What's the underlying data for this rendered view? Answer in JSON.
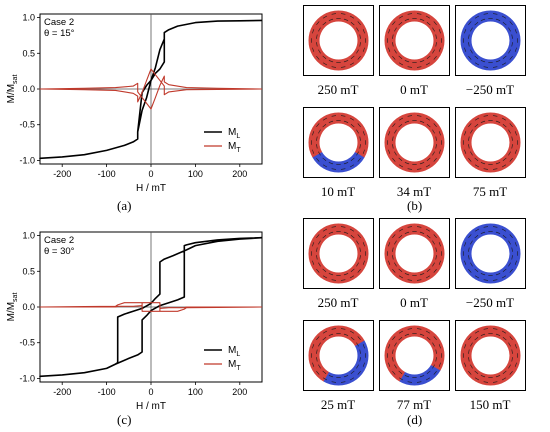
{
  "chart_data": [
    {
      "type": "line",
      "panel": "(a)",
      "annotation": [
        "Case 2",
        "θ = 15°"
      ],
      "xlabel": "H / mT",
      "ylabel": "M/Msat",
      "xlim": [
        -250,
        250
      ],
      "ylim": [
        -1.05,
        1.05
      ],
      "xticks": [
        -200,
        -100,
        0,
        100,
        200
      ],
      "yticks": [
        -1.0,
        -0.5,
        0.0,
        0.5,
        1.0
      ],
      "legend_position": "bottom-right",
      "series": [
        {
          "name": "ML",
          "color": "#000000",
          "x": [
            250,
            200,
            150,
            100,
            60,
            40,
            30,
            30,
            20,
            10,
            0,
            -10,
            -20,
            -30,
            -30,
            -40,
            -60,
            -100,
            -150,
            -200,
            -250,
            -250,
            -200,
            -150,
            -100,
            -60,
            -40,
            -30,
            -30,
            -20,
            -10,
            0,
            10,
            20,
            30,
            30,
            40,
            60,
            100,
            150,
            200,
            250
          ],
          "y": [
            0.96,
            0.955,
            0.95,
            0.93,
            0.88,
            0.83,
            0.79,
            0.38,
            0.28,
            0.22,
            0.12,
            0.05,
            -0.05,
            -0.6,
            -0.7,
            -0.74,
            -0.79,
            -0.86,
            -0.92,
            -0.95,
            -0.97,
            -0.97,
            -0.95,
            -0.92,
            -0.86,
            -0.79,
            -0.74,
            -0.7,
            -0.6,
            -0.3,
            -0.12,
            0.12,
            0.3,
            0.55,
            0.7,
            0.79,
            0.83,
            0.88,
            0.93,
            0.95,
            0.955,
            0.96
          ]
        },
        {
          "name": "MT",
          "color": "#c0392b",
          "x": [
            250,
            150,
            80,
            40,
            30,
            30,
            20,
            10,
            0,
            -10,
            -20,
            -30,
            -30,
            -40,
            -80,
            -150,
            -250,
            -250,
            -150,
            -80,
            -40,
            -30,
            -30,
            -20,
            -10,
            0,
            10,
            20,
            30,
            30,
            40,
            80,
            150,
            250
          ],
          "y": [
            0.0,
            -0.005,
            -0.01,
            -0.04,
            -0.08,
            0.04,
            0.12,
            0.2,
            0.28,
            0.12,
            -0.05,
            -0.18,
            -0.1,
            -0.06,
            -0.02,
            -0.01,
            0.0,
            0.0,
            0.01,
            0.02,
            0.04,
            0.08,
            -0.04,
            -0.12,
            -0.2,
            -0.28,
            -0.12,
            0.05,
            0.18,
            0.1,
            0.06,
            0.02,
            0.01,
            0.0
          ]
        }
      ]
    },
    {
      "type": "line",
      "panel": "(c)",
      "annotation": [
        "Case 2",
        "θ = 30°"
      ],
      "xlabel": "H / mT",
      "ylabel": "M/Msat",
      "xlim": [
        -250,
        250
      ],
      "ylim": [
        -1.05,
        1.05
      ],
      "xticks": [
        -200,
        -100,
        0,
        100,
        200
      ],
      "yticks": [
        -1.0,
        -0.5,
        0.0,
        0.5,
        1.0
      ],
      "legend_position": "bottom-right",
      "series": [
        {
          "name": "ML",
          "color": "#000000",
          "x": [
            250,
            200,
            150,
            100,
            80,
            75,
            75,
            60,
            40,
            20,
            0,
            -10,
            -20,
            -20,
            -30,
            -50,
            -80,
            -100,
            -150,
            -200,
            -250,
            -250,
            -200,
            -150,
            -100,
            -80,
            -75,
            -75,
            -60,
            -40,
            -20,
            0,
            10,
            20,
            20,
            30,
            50,
            80,
            100,
            150,
            200,
            250
          ],
          "y": [
            0.97,
            0.96,
            0.94,
            0.9,
            0.87,
            0.86,
            0.14,
            0.1,
            0.06,
            0.02,
            -0.05,
            -0.12,
            -0.18,
            -0.63,
            -0.67,
            -0.72,
            -0.8,
            -0.86,
            -0.92,
            -0.95,
            -0.97,
            -0.97,
            -0.95,
            -0.92,
            -0.86,
            -0.8,
            -0.78,
            -0.14,
            -0.1,
            -0.06,
            -0.02,
            0.05,
            0.12,
            0.18,
            0.63,
            0.67,
            0.72,
            0.8,
            0.86,
            0.92,
            0.95,
            0.97
          ]
        },
        {
          "name": "MT",
          "color": "#c0392b",
          "x": [
            250,
            150,
            80,
            75,
            60,
            40,
            20,
            20,
            0,
            -20,
            -20,
            -40,
            -75,
            -80,
            -150,
            -250,
            -250,
            -150,
            -80,
            -75,
            -60,
            -40,
            -20,
            -20,
            0,
            20,
            20,
            40,
            75,
            80,
            150,
            250
          ],
          "y": [
            0.0,
            -0.005,
            -0.01,
            -0.03,
            -0.06,
            -0.06,
            -0.06,
            0.06,
            0.06,
            0.06,
            0.02,
            0.01,
            0.01,
            0.0,
            0.0,
            0.0,
            0.0,
            0.005,
            0.01,
            0.03,
            0.06,
            0.06,
            0.06,
            -0.06,
            -0.06,
            -0.06,
            -0.02,
            -0.01,
            -0.01,
            0.0,
            0.0,
            0.0
          ]
        }
      ]
    }
  ],
  "panels": {
    "a_label": "(a)",
    "b_label": "(b)",
    "c_label": "(c)",
    "d_label": "(d)"
  },
  "rings_b": [
    {
      "caption": "250 mT",
      "colors": [
        "red",
        "red",
        "red",
        "red",
        "red",
        "red",
        "red",
        "red",
        "red",
        "red",
        "red",
        "red"
      ]
    },
    {
      "caption": "0 mT",
      "colors": [
        "red",
        "red",
        "red",
        "red",
        "red",
        "red",
        "red",
        "red",
        "red",
        "red",
        "red",
        "red"
      ]
    },
    {
      "caption": "−250 mT",
      "colors": [
        "blue",
        "blue",
        "blue",
        "blue",
        "blue",
        "blue",
        "blue",
        "blue",
        "blue",
        "blue",
        "blue",
        "blue"
      ]
    },
    {
      "caption": "10 mT",
      "colors": [
        "red",
        "red",
        "red",
        "red",
        "blue",
        "blue",
        "blue",
        "blue",
        "red",
        "red",
        "red",
        "red"
      ]
    },
    {
      "caption": "34 mT",
      "colors": [
        "red",
        "red",
        "red",
        "red",
        "red",
        "red",
        "red",
        "red",
        "red",
        "red",
        "red",
        "red"
      ]
    },
    {
      "caption": "75 mT",
      "colors": [
        "red",
        "red",
        "red",
        "red",
        "red",
        "red",
        "red",
        "red",
        "red",
        "red",
        "red",
        "red"
      ]
    }
  ],
  "rings_d": [
    {
      "caption": "250 mT",
      "colors": [
        "red",
        "red",
        "red",
        "red",
        "red",
        "red",
        "red",
        "red",
        "red",
        "red",
        "red",
        "red"
      ]
    },
    {
      "caption": "0 mT",
      "colors": [
        "red",
        "red",
        "red",
        "red",
        "red",
        "red",
        "red",
        "red",
        "red",
        "red",
        "red",
        "red"
      ]
    },
    {
      "caption": "−250 mT",
      "colors": [
        "blue",
        "blue",
        "blue",
        "blue",
        "blue",
        "blue",
        "blue",
        "blue",
        "blue",
        "blue",
        "blue",
        "blue"
      ]
    },
    {
      "caption": "25 mT",
      "colors": [
        "red",
        "red",
        "blue",
        "blue",
        "blue",
        "blue",
        "blue",
        "red",
        "red",
        "red",
        "red",
        "red"
      ]
    },
    {
      "caption": "77 mT",
      "colors": [
        "red",
        "red",
        "red",
        "red",
        "blue",
        "blue",
        "blue",
        "red",
        "red",
        "red",
        "red",
        "red"
      ]
    },
    {
      "caption": "150 mT",
      "colors": [
        "red",
        "red",
        "red",
        "red",
        "red",
        "red",
        "red",
        "red",
        "red",
        "red",
        "red",
        "red"
      ]
    }
  ],
  "colors": {
    "red": "#d6453d",
    "blue": "#3a4fd0",
    "line_black": "#000000",
    "line_red": "#c0392b"
  }
}
